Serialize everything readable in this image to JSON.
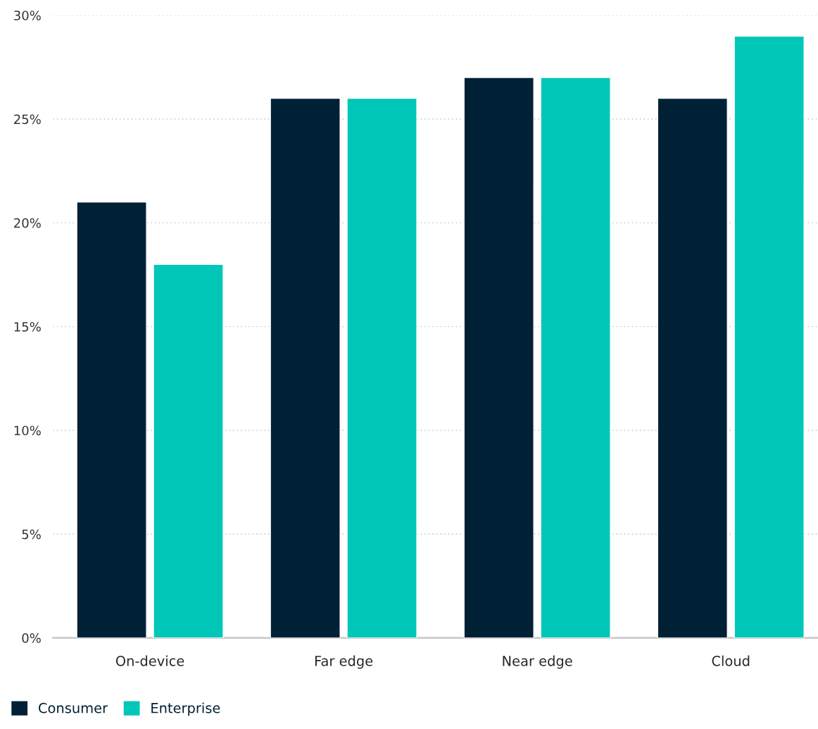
{
  "chart_data": {
    "type": "bar",
    "categories": [
      "On-device",
      "Far edge",
      "Near edge",
      "Cloud"
    ],
    "series": [
      {
        "name": "Consumer",
        "color": "#002036",
        "values": [
          21,
          26,
          27,
          26
        ]
      },
      {
        "name": "Enterprise",
        "color": "#00c7b8",
        "values": [
          18,
          26,
          27,
          29
        ]
      }
    ],
    "ylim": [
      0,
      30
    ],
    "yticks": [
      {
        "value": 0,
        "label": "0%"
      },
      {
        "value": 5,
        "label": "5%"
      },
      {
        "value": 10,
        "label": "10%"
      },
      {
        "value": 15,
        "label": "15%"
      },
      {
        "value": 20,
        "label": "20%"
      },
      {
        "value": 25,
        "label": "25%"
      },
      {
        "value": 30,
        "label": "30%"
      }
    ],
    "grid": "y",
    "legend": "bottom left"
  }
}
